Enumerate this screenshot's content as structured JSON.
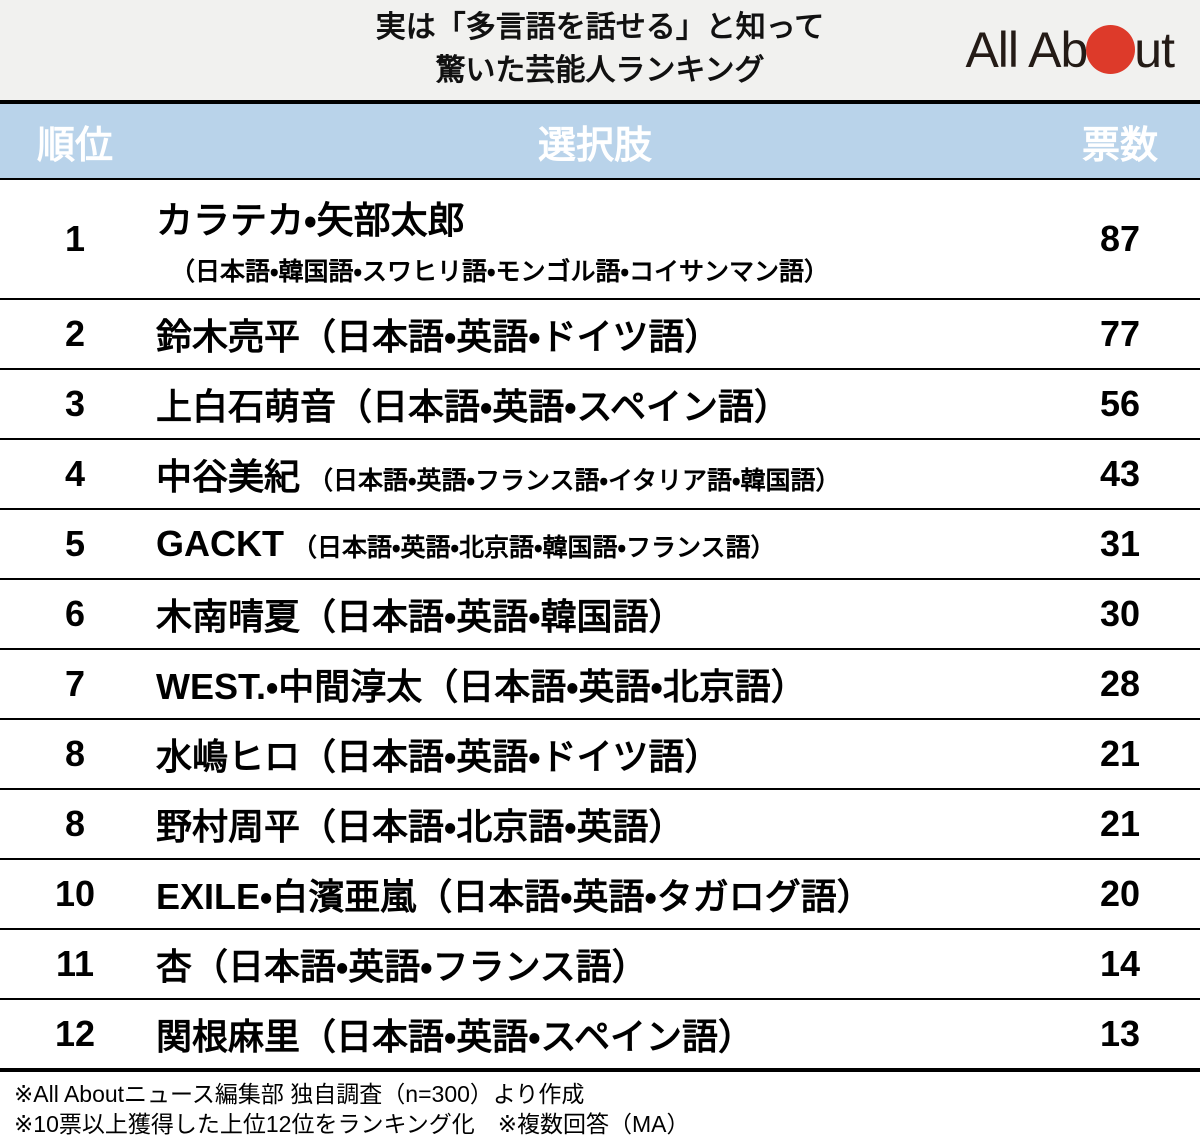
{
  "header": {
    "title_line1": "実は「多言語を話せる」と知って",
    "title_line2": "驚いた芸能人ランキング",
    "logo_text_left": "All Ab",
    "logo_text_right": "ut",
    "logo_dot_color": "#dd3a2a"
  },
  "columns": {
    "rank": "順位",
    "choice": "選択肢",
    "votes": "票数"
  },
  "table": {
    "rows": [
      {
        "rank": "1",
        "name": "カラテカ・矢部太郎",
        "languages": "（日本語・韓国語・スワヒリ語・モンゴル語・コイサンマン語）",
        "votes": "87"
      },
      {
        "rank": "2",
        "name": "鈴木亮平",
        "languages": "（日本語・英語・ドイツ語）",
        "votes": "77"
      },
      {
        "rank": "3",
        "name": "上白石萌音",
        "languages": "（日本語・英語・スペイン語）",
        "votes": "56"
      },
      {
        "rank": "4",
        "name": "中谷美紀",
        "languages": "（日本語・英語・フランス語・イタリア語・韓国語）",
        "votes": "43"
      },
      {
        "rank": "5",
        "name": "GACKT",
        "languages": "（日本語・英語・北京語・韓国語・フランス語）",
        "votes": "31"
      },
      {
        "rank": "6",
        "name": "木南晴夏",
        "languages": "（日本語・英語・韓国語）",
        "votes": "30"
      },
      {
        "rank": "7",
        "name": "WEST.・中間淳太",
        "languages": "（日本語・英語・北京語）",
        "votes": "28"
      },
      {
        "rank": "8",
        "name": "水嶋ヒロ",
        "languages": "（日本語・英語・ドイツ語）",
        "votes": "21"
      },
      {
        "rank": "8",
        "name": "野村周平",
        "languages": "（日本語・北京語・英語）",
        "votes": "21"
      },
      {
        "rank": "10",
        "name": "EXILE・白濱亜嵐",
        "languages": "（日本語・英語・タガログ語）",
        "votes": "20"
      },
      {
        "rank": "11",
        "name": "杏",
        "languages": "（日本語・英語・フランス語）",
        "votes": "14"
      },
      {
        "rank": "12",
        "name": "関根麻里",
        "languages": "（日本語・英語・スペイン語）",
        "votes": "13"
      }
    ]
  },
  "footer": {
    "note1": "※All Aboutニュース編集部 独自調査（n=300）より作成",
    "note2": "※10票以上獲得した上位12位をランキング化　※複数回答（MA）"
  },
  "colors": {
    "masthead_bg": "#f1f1ef",
    "table_header_bg": "#b9d3ea",
    "table_header_text": "#ffffff",
    "border": "#000000",
    "logo_dot": "#dd3a2a"
  },
  "chart_data": {
    "type": "table",
    "title": "実は「多言語を話せる」と知って驚いた芸能人ランキング",
    "columns": [
      "順位",
      "選択肢",
      "票数"
    ],
    "rows": [
      [
        1,
        "カラテカ・矢部太郎（日本語・韓国語・スワヒリ語・モンゴル語・コイサンマン語）",
        87
      ],
      [
        2,
        "鈴木亮平（日本語・英語・ドイツ語）",
        77
      ],
      [
        3,
        "上白石萌音（日本語・英語・スペイン語）",
        56
      ],
      [
        4,
        "中谷美紀（日本語・英語・フランス語・イタリア語・韓国語）",
        43
      ],
      [
        5,
        "GACKT（日本語・英語・北京語・韓国語・フランス語）",
        31
      ],
      [
        6,
        "木南晴夏（日本語・英語・韓国語）",
        30
      ],
      [
        7,
        "WEST.・中間淳太（日本語・英語・北京語）",
        28
      ],
      [
        8,
        "水嶋ヒロ（日本語・英語・ドイツ語）",
        21
      ],
      [
        8,
        "野村周平（日本語・北京語・英語）",
        21
      ],
      [
        10,
        "EXILE・白濱亜嵐（日本語・英語・タガログ語）",
        20
      ],
      [
        11,
        "杏（日本語・英語・フランス語）",
        14
      ],
      [
        12,
        "関根麻里（日本語・英語・スペイン語）",
        13
      ]
    ],
    "notes": [
      "※All Aboutニュース編集部 独自調査（n=300）より作成",
      "※10票以上獲得した上位12位をランキング化　※複数回答（MA）"
    ]
  }
}
